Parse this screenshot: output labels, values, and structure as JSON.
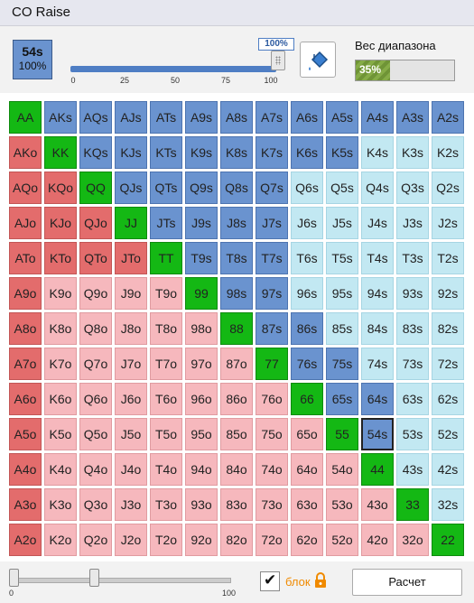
{
  "window": {
    "title": "CO Raise"
  },
  "selected_hand": {
    "name": "54s",
    "percent": "100%"
  },
  "slider": {
    "label": "100%",
    "value": 100,
    "ticks": [
      "0",
      "25",
      "50",
      "75",
      "100"
    ]
  },
  "range": {
    "label": "Вес диапазона",
    "value_text": "35%",
    "value": 35
  },
  "grid": [
    [
      "AA",
      "AKs",
      "AQs",
      "AJs",
      "ATs",
      "A9s",
      "A8s",
      "A7s",
      "A6s",
      "A5s",
      "A4s",
      "A3s",
      "A2s"
    ],
    [
      "AKo",
      "KK",
      "KQs",
      "KJs",
      "KTs",
      "K9s",
      "K8s",
      "K7s",
      "K6s",
      "K5s",
      "K4s",
      "K3s",
      "K2s"
    ],
    [
      "AQo",
      "KQo",
      "QQ",
      "QJs",
      "QTs",
      "Q9s",
      "Q8s",
      "Q7s",
      "Q6s",
      "Q5s",
      "Q4s",
      "Q3s",
      "Q2s"
    ],
    [
      "AJo",
      "KJo",
      "QJo",
      "JJ",
      "JTs",
      "J9s",
      "J8s",
      "J7s",
      "J6s",
      "J5s",
      "J4s",
      "J3s",
      "J2s"
    ],
    [
      "ATo",
      "KTo",
      "QTo",
      "JTo",
      "TT",
      "T9s",
      "T8s",
      "T7s",
      "T6s",
      "T5s",
      "T4s",
      "T3s",
      "T2s"
    ],
    [
      "A9o",
      "K9o",
      "Q9o",
      "J9o",
      "T9o",
      "99",
      "98s",
      "97s",
      "96s",
      "95s",
      "94s",
      "93s",
      "92s"
    ],
    [
      "A8o",
      "K8o",
      "Q8o",
      "J8o",
      "T8o",
      "98o",
      "88",
      "87s",
      "86s",
      "85s",
      "84s",
      "83s",
      "82s"
    ],
    [
      "A7o",
      "K7o",
      "Q7o",
      "J7o",
      "T7o",
      "97o",
      "87o",
      "77",
      "76s",
      "75s",
      "74s",
      "73s",
      "72s"
    ],
    [
      "A6o",
      "K6o",
      "Q6o",
      "J6o",
      "T6o",
      "96o",
      "86o",
      "76o",
      "66",
      "65s",
      "64s",
      "63s",
      "62s"
    ],
    [
      "A5o",
      "K5o",
      "Q5o",
      "J5o",
      "T5o",
      "95o",
      "85o",
      "75o",
      "65o",
      "55",
      "54s",
      "53s",
      "52s"
    ],
    [
      "A4o",
      "K4o",
      "Q4o",
      "J4o",
      "T4o",
      "94o",
      "84o",
      "74o",
      "64o",
      "54o",
      "44",
      "43s",
      "42s"
    ],
    [
      "A3o",
      "K3o",
      "Q3o",
      "J3o",
      "T3o",
      "93o",
      "83o",
      "73o",
      "63o",
      "53o",
      "43o",
      "33",
      "32s"
    ],
    [
      "A2o",
      "K2o",
      "Q2o",
      "J2o",
      "T2o",
      "92o",
      "82o",
      "72o",
      "62o",
      "52o",
      "42o",
      "32o",
      "22"
    ]
  ],
  "colors": {
    "green": "#14b814",
    "blue": "#6a93cf",
    "light_blue": "#c2e8f2",
    "red": "#e36c6c",
    "pink": "#f6b8bd"
  },
  "bottom": {
    "slider_min": "0",
    "slider_max": "100",
    "lock_label": "блок",
    "lock_checked": true,
    "calc_label": "Расчет"
  },
  "icons": {
    "fill": "paint-bucket-icon",
    "lock": "lock-icon",
    "check": "checkmark-icon"
  }
}
